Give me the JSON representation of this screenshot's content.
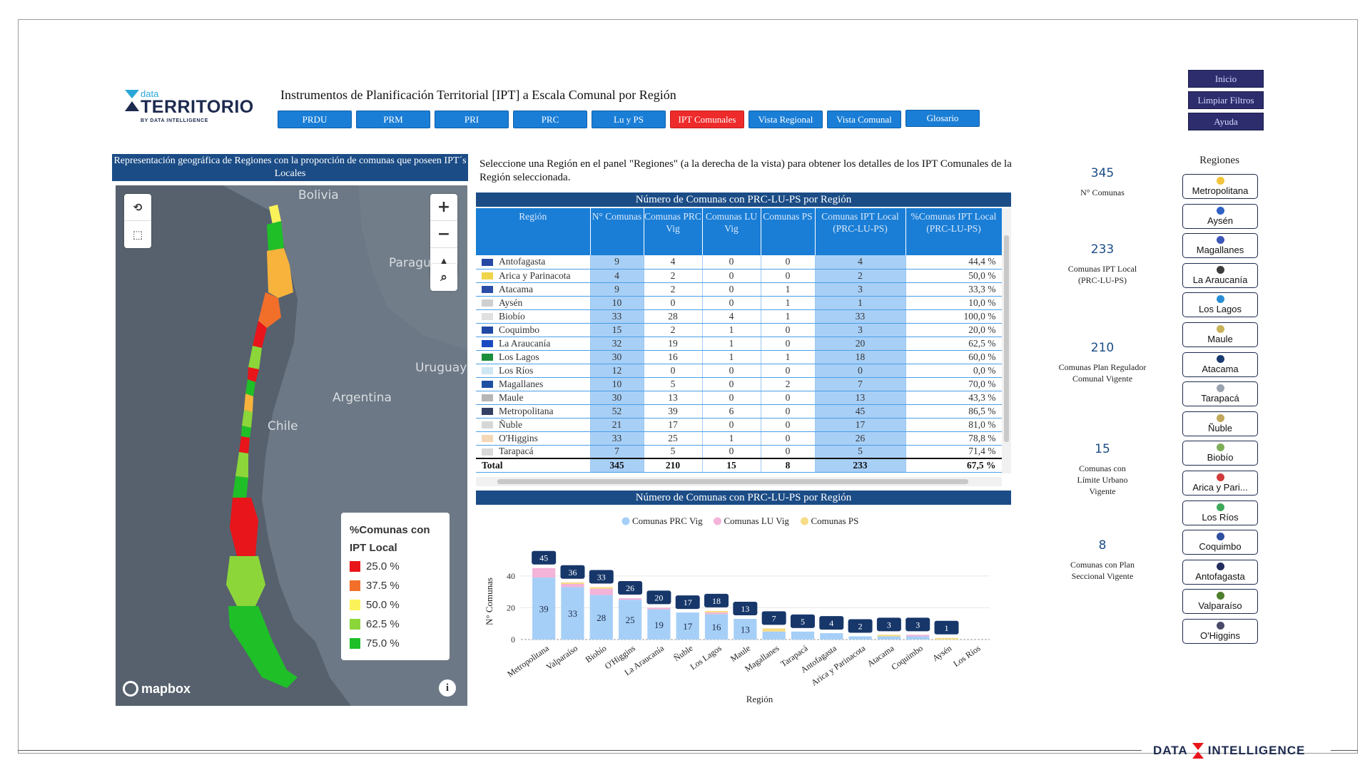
{
  "logo": {
    "small": "data",
    "main": "TERRITORIO",
    "byline": "BY DATA INTELLIGENCE"
  },
  "page_title": "Instrumentos de Planificación Territorial [IPT] a Escala Comunal por Región",
  "nav": [
    "PRDU",
    "PRM",
    "PRI",
    "PRC",
    "Lu y PS",
    "IPT Comunales",
    "Vista Regional",
    "Vista Comunal",
    "Glosario"
  ],
  "nav_active": "IPT Comunales",
  "top_buttons": {
    "inicio": "Inicio",
    "limpiar": "Limpiar Filtros",
    "ayuda": "Ayuda"
  },
  "map": {
    "title": "Representación geográfica de Regiones con la proporción de comunas que poseen IPT´s Locales",
    "labels": {
      "bolivia": "Bolivia",
      "paraguay": "Paragu",
      "uruguay": "Uruguay",
      "argentina": "Argentina",
      "chile": "Chile"
    },
    "legend_title_1": "%Comunas con",
    "legend_title_2": "IPT Local",
    "legend": [
      {
        "label": "25.0 %",
        "color": "#e8151b"
      },
      {
        "label": "37.5 %",
        "color": "#f26f2a"
      },
      {
        "label": "50.0 %",
        "color": "#fbf25a"
      },
      {
        "label": "62.5 %",
        "color": "#8cd63a"
      },
      {
        "label": "75.0 %",
        "color": "#1fbf28"
      }
    ],
    "attribution": "mapbox",
    "info": "i"
  },
  "instructions": "Seleccione una Región en el panel \"Regiones\" (a la derecha de la vista) para obtener los detalles de los IPT Comunales de la Región seleccionada.",
  "table": {
    "title": "Número de Comunas con PRC-LU-PS por Región",
    "headers": [
      "Región",
      "N° Comunas",
      "Comunas PRC Vig",
      "Comunas LU Vig",
      "Comunas PS",
      "Comunas IPT Local (PRC-LU-PS)",
      "%Comunas IPT Local (PRC-LU-PS)"
    ],
    "rows": [
      [
        "Antofagasta",
        "9",
        "4",
        "0",
        "0",
        "4",
        "44,4 %"
      ],
      [
        "Arica y Parinacota",
        "4",
        "2",
        "0",
        "0",
        "2",
        "50,0 %"
      ],
      [
        "Atacama",
        "9",
        "2",
        "0",
        "1",
        "3",
        "33,3 %"
      ],
      [
        "Aysén",
        "10",
        "0",
        "0",
        "1",
        "1",
        "10,0 %"
      ],
      [
        "Biobío",
        "33",
        "28",
        "4",
        "1",
        "33",
        "100,0 %"
      ],
      [
        "Coquimbo",
        "15",
        "2",
        "1",
        "0",
        "3",
        "20,0 %"
      ],
      [
        "La Araucanía",
        "32",
        "19",
        "1",
        "0",
        "20",
        "62,5 %"
      ],
      [
        "Los Lagos",
        "30",
        "16",
        "1",
        "1",
        "18",
        "60,0 %"
      ],
      [
        "Los Ríos",
        "12",
        "0",
        "0",
        "0",
        "0",
        "0,0 %"
      ],
      [
        "Magallanes",
        "10",
        "5",
        "0",
        "2",
        "7",
        "70,0 %"
      ],
      [
        "Maule",
        "30",
        "13",
        "0",
        "0",
        "13",
        "43,3 %"
      ],
      [
        "Metropolitana",
        "52",
        "39",
        "6",
        "0",
        "45",
        "86,5 %"
      ],
      [
        "Ñuble",
        "21",
        "17",
        "0",
        "0",
        "17",
        "81,0 %"
      ],
      [
        "O'Higgins",
        "33",
        "25",
        "1",
        "0",
        "26",
        "78,8 %"
      ],
      [
        "Tarapacá",
        "7",
        "5",
        "0",
        "0",
        "5",
        "71,4 %"
      ]
    ],
    "total": [
      "Total",
      "345",
      "210",
      "15",
      "8",
      "233",
      "67,5 %"
    ]
  },
  "chart_title": "Número de Comunas con PRC-LU-PS por Región",
  "chart_data": {
    "type": "bar",
    "stacked": true,
    "xlabel": "Región",
    "ylabel": "N° Comunas",
    "ylim": [
      0,
      48
    ],
    "yticks": [
      0,
      20,
      40
    ],
    "categories": [
      "Metropolitana",
      "Valparaíso",
      "Biobío",
      "O'Higgins",
      "La Araucanía",
      "Ñuble",
      "Los Lagos",
      "Maule",
      "Magallanes",
      "Tarapacá",
      "Antofagasta",
      "Arica y Parinacota",
      "Atacama",
      "Coquimbo",
      "Aysén",
      "Los Ríos"
    ],
    "series": [
      {
        "name": "Comunas PRC Vig",
        "color": "#a6cff7",
        "values": [
          39,
          33,
          28,
          25,
          19,
          17,
          16,
          13,
          5,
          5,
          4,
          2,
          2,
          2,
          0,
          0
        ]
      },
      {
        "name": "Comunas LU Vig",
        "color": "#f4b3d8",
        "values": [
          6,
          2,
          4,
          1,
          1,
          0,
          1,
          0,
          0,
          0,
          0,
          0,
          0,
          1,
          0,
          0
        ]
      },
      {
        "name": "Comunas PS",
        "color": "#f6dc86",
        "values": [
          0,
          1,
          1,
          0,
          0,
          0,
          1,
          0,
          2,
          0,
          0,
          0,
          1,
          0,
          1,
          0
        ]
      }
    ],
    "totals": [
      45,
      36,
      33,
      26,
      20,
      17,
      18,
      13,
      7,
      5,
      4,
      2,
      3,
      3,
      1,
      null
    ],
    "bar_labels": [
      39,
      33,
      28,
      25,
      19,
      17,
      16,
      13
    ]
  },
  "kpis": [
    {
      "value": "345",
      "label": "N° Comunas"
    },
    {
      "value": "233",
      "label": "Comunas IPT Local (PRC-LU-PS)"
    },
    {
      "value": "210",
      "label": "Comunas Plan Regulador Comunal Vigente"
    },
    {
      "value": "15",
      "label": "Comunas con Límite Urbano Vigente"
    },
    {
      "value": "8",
      "label": "Comunas con Plan Seccional Vigente"
    }
  ],
  "regions_title": "Regiones",
  "region_buttons": [
    "Metropolitana",
    "Aysén",
    "Magallanes",
    "La Araucanía",
    "Los Lagos",
    "Maule",
    "Atacama",
    "Tarapacá",
    "Ñuble",
    "Biobío",
    "Arica y Pari...",
    "Los Ríos",
    "Coquimbo",
    "Antofagasta",
    "Valparaíso",
    "O'Higgins"
  ],
  "footer": {
    "left": "DATA",
    "right": "INTELLIGENCE"
  }
}
